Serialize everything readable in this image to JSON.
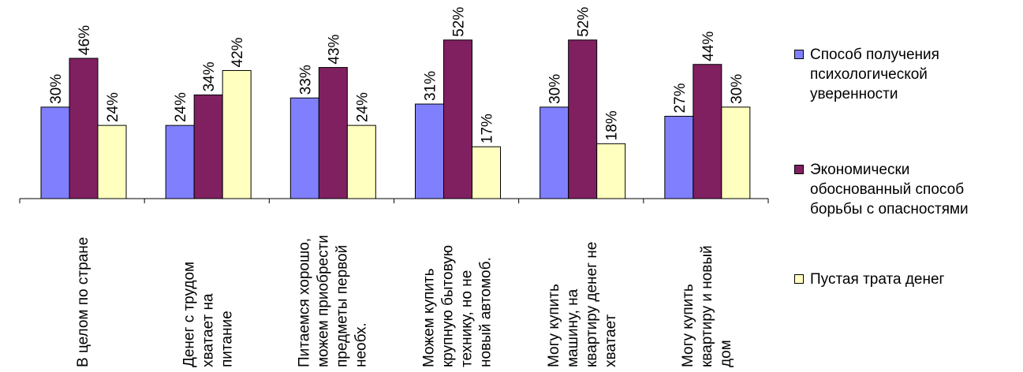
{
  "chart_data": {
    "type": "bar",
    "categories": [
      "В целом по стране",
      "Денег с трудом хватает на питание",
      "Питаемся хорошо, можем приобрести предметы первой необх.",
      "Можем купить крупную бытовую технику, но не новый автомоб.",
      "Могу купить машину, на квартиру денег не хватает",
      "Могу купить квартиру и новый дом"
    ],
    "category_lines": [
      [
        "В целом по стране"
      ],
      [
        "Денег с трудом",
        "хватает на",
        "питание"
      ],
      [
        "Питаемся хорошо,",
        "можем приобрести",
        "предметы первой",
        "необх."
      ],
      [
        "Можем купить",
        "крупную бытовую",
        "технику, но не",
        "новый автомоб."
      ],
      [
        "Могу купить",
        "машину, на",
        "квартиру денег не",
        "хватает"
      ],
      [
        "Могу купить",
        "квартиру и новый",
        "дом"
      ]
    ],
    "series": [
      {
        "name": "Способ получения психологической уверенности",
        "name_lines": [
          "Способ получения",
          "психологической",
          "уверенности"
        ],
        "color": "#8080FF",
        "values": [
          30,
          24,
          33,
          31,
          30,
          27
        ],
        "labels": [
          "30%",
          "24%",
          "33%",
          "31%",
          "30%",
          "27%"
        ]
      },
      {
        "name": "Экономически обоснованный способ борьбы с опасностями",
        "name_lines": [
          "Экономически",
          "обоснованный способ",
          "борьбы с опасностями"
        ],
        "color": "#802060",
        "values": [
          46,
          34,
          43,
          52,
          52,
          44
        ],
        "labels": [
          "46%",
          "34%",
          "43%",
          "52%",
          "52%",
          "44%"
        ]
      },
      {
        "name": "Пустая трата денег",
        "name_lines": [
          "Пустая трата денег"
        ],
        "color": "#FFFFC0",
        "values": [
          24,
          42,
          24,
          17,
          18,
          30
        ],
        "labels": [
          "24%",
          "42%",
          "24%",
          "17%",
          "18%",
          "30%"
        ]
      }
    ],
    "ylim": [
      0,
      52
    ],
    "grid": false,
    "legend_position": "right",
    "title": "",
    "xlabel": "",
    "ylabel": ""
  }
}
